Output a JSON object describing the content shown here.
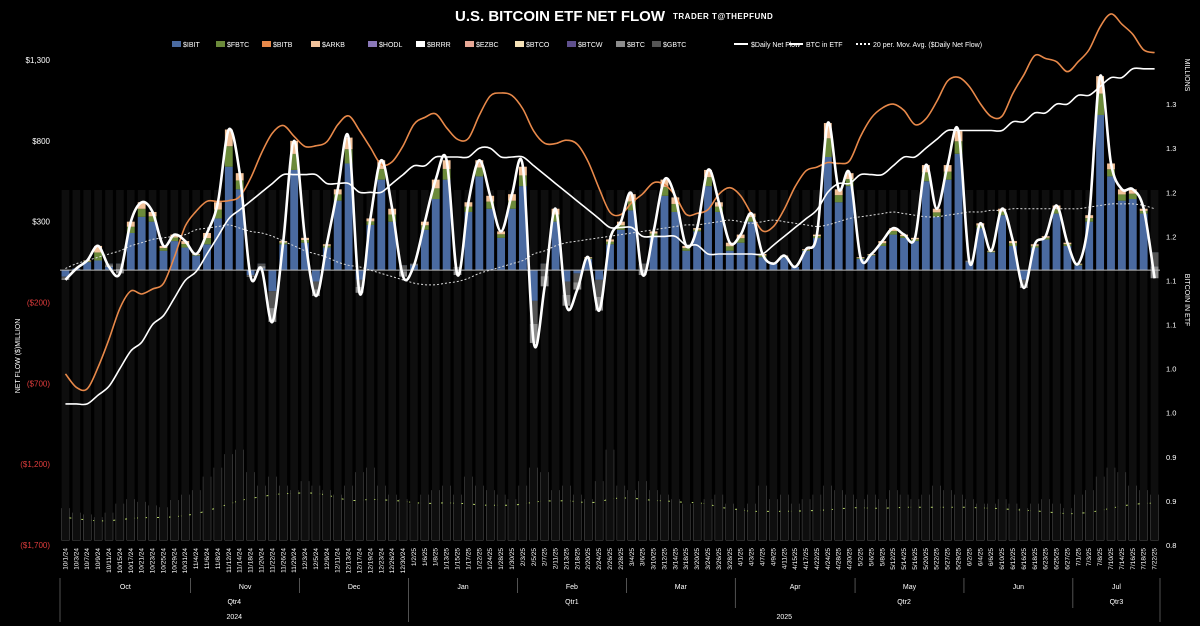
{
  "header": {
    "title": "U.S. BITCOIN ETF NET FLOW",
    "subtitle": "TRADER T@THEPFUND"
  },
  "colors": {
    "background": "#000000",
    "IBIT": "#4a6aa0",
    "FBTC": "#6b8a3a",
    "BITB": "#e8894a",
    "ARKB": "#f2c29a",
    "HODL": "#8a78b8",
    "BRRR": "#ffffff",
    "EZBC": "#e8a896",
    "BTCO": "#f6e3b8",
    "BTCW": "#5e4f8c",
    "BTC": "#8c8c8c",
    "GBTC": "#555555",
    "daily_net_flow": "#ffffff",
    "btc_in_etf": "#ffffff",
    "moving_average": "#dddddd",
    "volume_ma": "#b9d86a",
    "negative_tick": "#e03c3c"
  },
  "chart_data": {
    "type": "bar",
    "title": "U.S. BITCOIN ETF NET FLOW",
    "subtitle": "TRADER T@THEPFUND",
    "legend": [
      "$IBIT",
      "$FBTC",
      "$BITB",
      "$ARKB",
      "$HODL",
      "$BRRR",
      "$EZBC",
      "$BTCO",
      "$BTCW",
      "$BTC",
      "$GBTC",
      "$Daily Net Flow",
      "BTC in ETF",
      "20 per. Mov. Avg. ($Daily Net Flow)"
    ],
    "legend_position": "top",
    "ylabel": "NET FLOW ($)MILLION",
    "y2label": "MILLIONS",
    "y3label": "BITCOIN IN ETF",
    "yticks_left": [
      "$1,300",
      "$800",
      "$300",
      "($200)",
      "($700)",
      "($1,200)",
      "($1,700)"
    ],
    "ylim": [
      -1700,
      1300
    ],
    "yticks_right": [
      "1.3",
      "1.3",
      "1.2",
      "1.2",
      "1.1",
      "1.1",
      "1.0",
      "1.0",
      "0.9",
      "0.9",
      "0.8"
    ],
    "y2lim": [
      0.8,
      1.35
    ],
    "x_dates": [
      "10/1/24",
      "10/3/24",
      "10/7/24",
      "10/9/24",
      "10/11/24",
      "10/15/24",
      "10/17/24",
      "10/21/24",
      "10/23/24",
      "10/25/24",
      "10/29/24",
      "10/31/24",
      "11/4/24",
      "11/6/24",
      "11/8/24",
      "11/12/24",
      "11/14/24",
      "11/18/24",
      "11/20/24",
      "11/22/24",
      "11/26/24",
      "11/29/24",
      "12/3/24",
      "12/5/24",
      "12/9/24",
      "12/11/24",
      "12/13/24",
      "12/17/24",
      "12/19/24",
      "12/23/24",
      "12/26/24",
      "12/30/24",
      "1/2/25",
      "1/6/25",
      "1/8/25",
      "1/13/25",
      "1/15/25",
      "1/17/25",
      "1/22/25",
      "1/24/25",
      "1/28/25",
      "1/30/25",
      "2/3/25",
      "2/5/25",
      "2/7/25",
      "2/11/25",
      "2/13/25",
      "2/18/25",
      "2/20/25",
      "2/24/25",
      "2/26/25",
      "2/28/25",
      "3/4/25",
      "3/6/25",
      "3/10/25",
      "3/12/25",
      "3/14/25",
      "3/18/25",
      "3/20/25",
      "3/24/25",
      "3/26/25",
      "3/28/25",
      "4/1/25",
      "4/3/25",
      "4/7/25",
      "4/9/25",
      "4/11/25",
      "4/15/25",
      "4/17/25",
      "4/22/25",
      "4/24/25",
      "4/28/25",
      "4/30/25",
      "5/2/25",
      "5/6/25",
      "5/8/25",
      "5/12/25",
      "5/14/25",
      "5/16/25",
      "5/20/25",
      "5/22/25",
      "5/27/25",
      "5/29/25",
      "6/2/25",
      "6/4/25",
      "6/6/25",
      "6/10/25",
      "6/12/25",
      "6/16/25",
      "6/18/25",
      "6/23/25",
      "6/25/25",
      "6/27/25",
      "7/1/25",
      "7/3/25",
      "7/8/25",
      "7/10/25",
      "7/14/25",
      "7/16/25",
      "7/18/25",
      "7/22/25"
    ],
    "months": [
      "Oct",
      "Nov",
      "Dec",
      "Jan",
      "Feb",
      "Mar",
      "Apr",
      "May",
      "Jun",
      "Jul"
    ],
    "quarters": [
      "Qtr4",
      "Qtr1",
      "Qtr2",
      "Qtr3"
    ],
    "years": [
      "2024",
      "2025"
    ],
    "daily_net_flow": [
      -60,
      10,
      60,
      150,
      20,
      -20,
      300,
      420,
      360,
      150,
      220,
      180,
      100,
      230,
      420,
      870,
      600,
      -40,
      10,
      -320,
      180,
      800,
      200,
      -160,
      160,
      500,
      820,
      -140,
      320,
      680,
      380,
      -40,
      30,
      300,
      560,
      680,
      -30,
      420,
      680,
      460,
      240,
      470,
      640,
      -450,
      -100,
      380,
      -220,
      -120,
      80,
      -250,
      190,
      300,
      470,
      -30,
      240,
      560,
      450,
      150,
      260,
      620,
      420,
      170,
      220,
      350,
      100,
      40,
      90,
      20,
      130,
      220,
      910,
      500,
      600,
      80,
      100,
      180,
      260,
      220,
      200,
      650,
      380,
      650,
      860,
      50,
      290,
      120,
      380,
      180,
      -110,
      160,
      210,
      400,
      170,
      40,
      340,
      1200,
      660,
      500,
      500,
      380,
      -50
    ],
    "btc_in_etf_millions": [
      0.96,
      0.96,
      0.96,
      0.97,
      0.98,
      1.0,
      1.02,
      1.03,
      1.05,
      1.06,
      1.08,
      1.1,
      1.11,
      1.13,
      1.15,
      1.17,
      1.18,
      1.19,
      1.2,
      1.21,
      1.22,
      1.22,
      1.22,
      1.22,
      1.21,
      1.21,
      1.21,
      1.2,
      1.2,
      1.2,
      1.21,
      1.22,
      1.23,
      1.23,
      1.24,
      1.24,
      1.24,
      1.24,
      1.25,
      1.25,
      1.24,
      1.24,
      1.24,
      1.23,
      1.22,
      1.21,
      1.2,
      1.19,
      1.18,
      1.17,
      1.16,
      1.16,
      1.16,
      1.15,
      1.15,
      1.15,
      1.15,
      1.14,
      1.14,
      1.13,
      1.13,
      1.13,
      1.13,
      1.13,
      1.13,
      1.14,
      1.15,
      1.16,
      1.17,
      1.18,
      1.2,
      1.21,
      1.21,
      1.22,
      1.22,
      1.22,
      1.23,
      1.24,
      1.24,
      1.25,
      1.26,
      1.27,
      1.27,
      1.27,
      1.27,
      1.27,
      1.27,
      1.28,
      1.28,
      1.29,
      1.29,
      1.3,
      1.3,
      1.31,
      1.31,
      1.32,
      1.33,
      1.33,
      1.34,
      1.34,
      1.34
    ],
    "moving_avg_20": [
      10,
      40,
      60,
      80,
      100,
      120,
      150,
      170,
      190,
      200,
      210,
      220,
      250,
      260,
      270,
      280,
      260,
      240,
      230,
      210,
      180,
      150,
      120,
      100,
      80,
      50,
      30,
      20,
      0,
      -20,
      -40,
      -60,
      -80,
      -90,
      -90,
      -80,
      -70,
      -50,
      -20,
      0,
      20,
      40,
      60,
      100,
      120,
      150,
      170,
      180,
      190,
      200,
      210,
      220,
      230,
      240,
      250,
      260,
      270,
      280,
      280,
      290,
      300,
      310,
      300,
      290,
      300,
      310,
      300,
      290,
      280,
      270,
      280,
      300,
      320,
      330,
      340,
      350,
      360,
      350,
      340,
      330,
      330,
      340,
      350,
      360,
      360,
      370,
      370,
      380,
      380,
      380,
      380,
      380,
      380,
      380,
      390,
      400,
      410,
      410,
      410,
      400,
      380
    ],
    "ibit_bars": [
      -40,
      10,
      50,
      60,
      40,
      40,
      230,
      330,
      300,
      120,
      180,
      140,
      90,
      160,
      320,
      640,
      500,
      -30,
      40,
      -130,
      160,
      620,
      170,
      -70,
      140,
      430,
      660,
      -60,
      280,
      560,
      300,
      30,
      40,
      250,
      440,
      560,
      20,
      360,
      580,
      380,
      200,
      380,
      520,
      -190,
      40,
      300,
      -70,
      -20,
      70,
      -60,
      160,
      250,
      370,
      40,
      210,
      460,
      360,
      120,
      240,
      520,
      360,
      120,
      170,
      300,
      80,
      40,
      80,
      20,
      120,
      200,
      700,
      420,
      520,
      70,
      90,
      150,
      220,
      200,
      180,
      550,
      330,
      560,
      720,
      60,
      260,
      110,
      340,
      150,
      -60,
      140,
      190,
      350,
      150,
      30,
      300,
      960,
      580,
      430,
      440,
      350,
      110
    ],
    "volume_bars_relative": [
      0.35,
      0.3,
      0.28,
      0.25,
      0.3,
      0.4,
      0.45,
      0.42,
      0.38,
      0.36,
      0.44,
      0.5,
      0.55,
      0.7,
      0.8,
      0.95,
      1.0,
      0.75,
      0.6,
      0.7,
      0.6,
      0.55,
      0.65,
      0.6,
      0.55,
      0.5,
      0.6,
      0.75,
      0.8,
      0.6,
      0.5,
      0.45,
      0.4,
      0.5,
      0.55,
      0.6,
      0.5,
      0.7,
      0.6,
      0.55,
      0.5,
      0.45,
      0.6,
      0.8,
      0.75,
      0.55,
      0.6,
      0.5,
      0.45,
      0.65,
      1.0,
      0.6,
      0.55,
      0.65,
      0.55,
      0.5,
      0.45,
      0.4,
      0.4,
      0.45,
      0.5,
      0.4,
      0.35,
      0.4,
      0.6,
      0.45,
      0.5,
      0.4,
      0.45,
      0.5,
      0.6,
      0.55,
      0.5,
      0.45,
      0.5,
      0.45,
      0.55,
      0.5,
      0.45,
      0.5,
      0.6,
      0.55,
      0.5,
      0.45,
      0.4,
      0.4,
      0.45,
      0.4,
      0.35,
      0.4,
      0.45,
      0.4,
      0.35,
      0.5,
      0.55,
      0.7,
      0.8,
      0.75,
      0.6,
      0.55,
      0.5
    ]
  }
}
